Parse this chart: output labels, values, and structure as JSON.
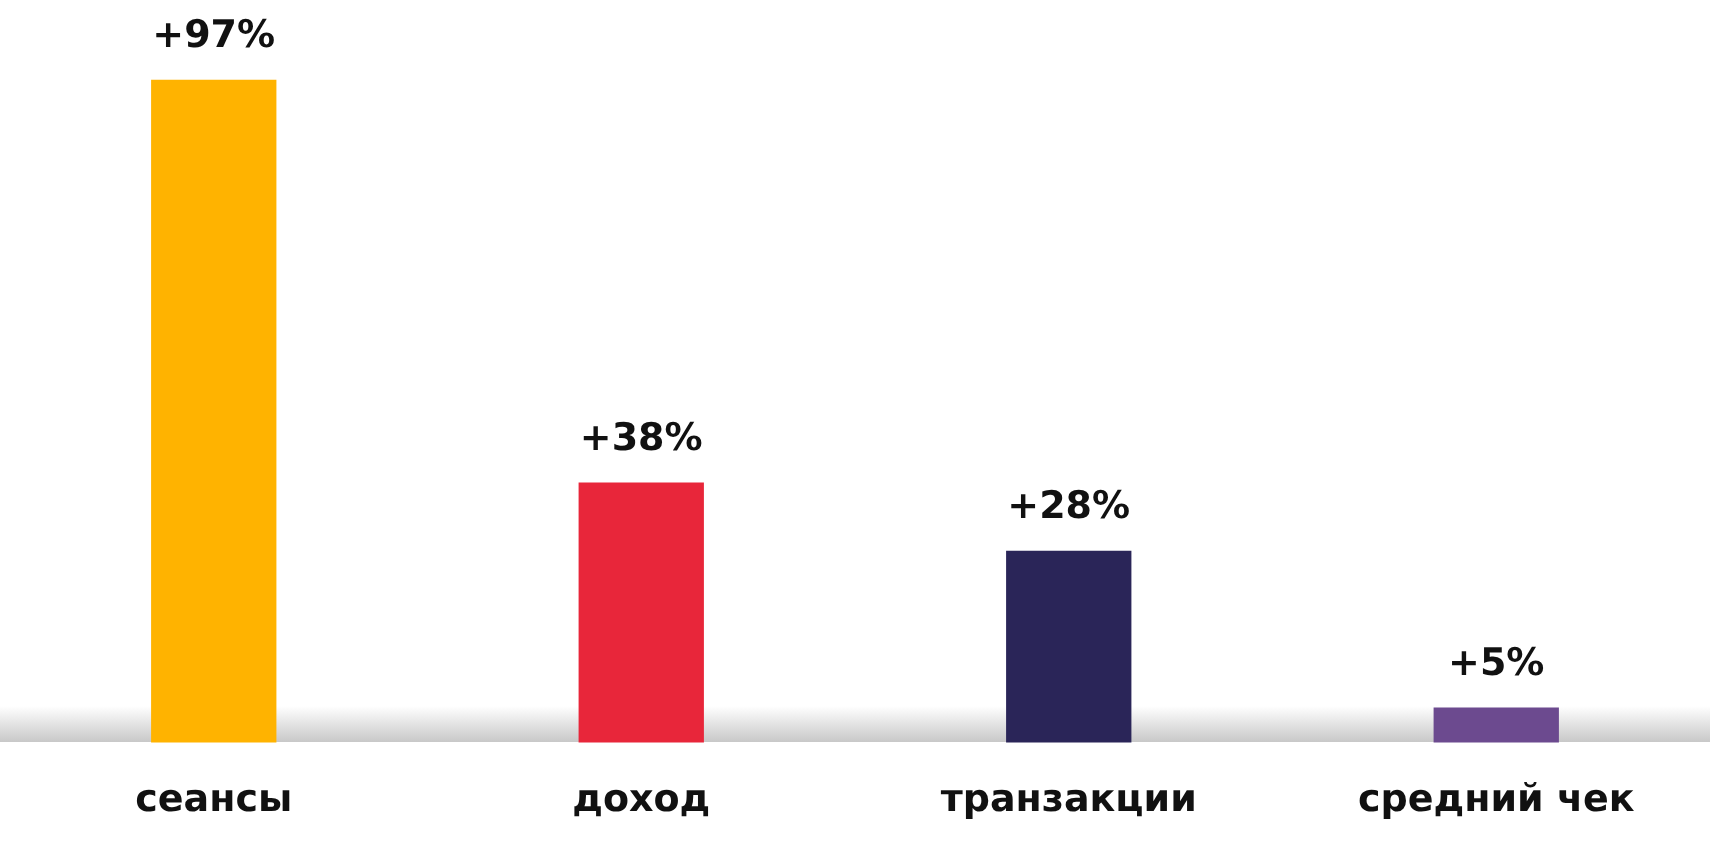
{
  "chart_data": {
    "type": "bar",
    "categories": [
      "сеансы",
      "доход",
      "транзакции",
      "средний чек"
    ],
    "values": [
      97,
      38,
      28,
      5
    ],
    "colors": [
      "#ffb300",
      "#e8263a",
      "#2a2558",
      "#6c4a8f"
    ],
    "value_labels": [
      "+97%",
      "+38%",
      "+28%",
      "+5%"
    ],
    "tick_labels": "x",
    "grid": false,
    "legend": false
  }
}
